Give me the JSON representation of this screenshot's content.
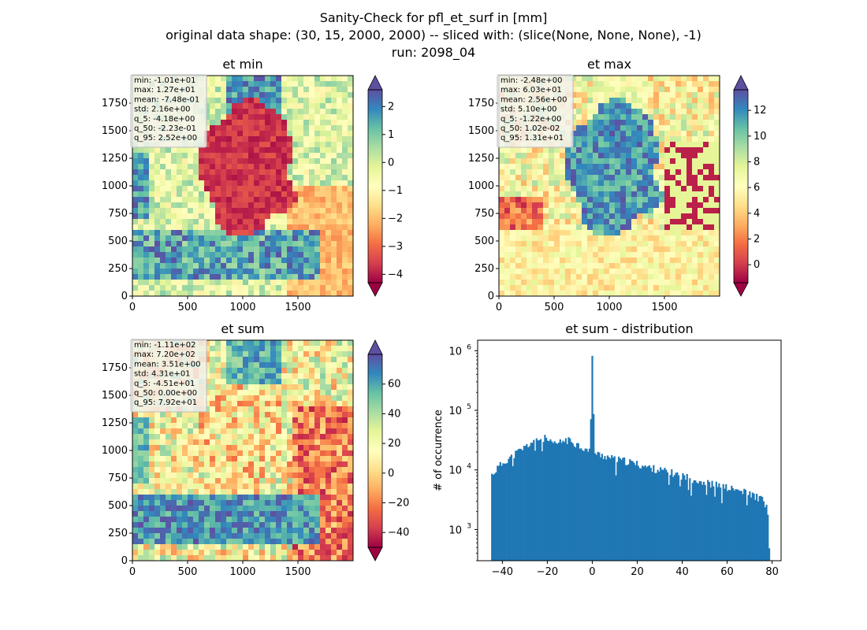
{
  "figure": {
    "title_lines": [
      "Sanity-Check for pfl_et_surf in [mm]",
      "original data shape: (30, 15, 2000, 2000) -- sliced with: (slice(None, None, None), -1)",
      "run: 2098_04"
    ]
  },
  "colors": {
    "hist_bar": "#1f77b4",
    "colormap": [
      "#9e0142",
      "#d53e4f",
      "#f46d43",
      "#fdae61",
      "#fee08b",
      "#ffffbf",
      "#e6f598",
      "#abdda4",
      "#66c2a5",
      "#3288bd",
      "#5e4fa2"
    ]
  },
  "chart_data": [
    {
      "type": "heatmap",
      "title": "et min",
      "xlim": [
        0,
        2000
      ],
      "ylim": [
        0,
        2000
      ],
      "xticks": [
        "0",
        "500",
        "1000",
        "1500"
      ],
      "yticks": [
        "0",
        "250",
        "500",
        "750",
        "1000",
        "1250",
        "1500",
        "1750"
      ],
      "vmin": -4.3,
      "vmax": 2.6,
      "colorbar_ticks": [
        "2",
        "1",
        "0",
        "−1",
        "−2",
        "−3",
        "−4"
      ],
      "colorbar_tick_values": [
        2,
        1,
        0,
        -1,
        -2,
        -3,
        -4
      ],
      "stats": [
        "min: -1.01e+01",
        "max: 1.27e+01",
        "mean: -7.48e-01",
        "std: 2.16e+00",
        "q_5: -4.18e+00",
        "q_50: -2.23e-01",
        "q_95: 2.52e+00"
      ]
    },
    {
      "type": "heatmap",
      "title": "et max",
      "xlim": [
        0,
        2000
      ],
      "ylim": [
        0,
        2000
      ],
      "xticks": [
        "0",
        "500",
        "1000",
        "1500"
      ],
      "yticks": [
        "0",
        "250",
        "500",
        "750",
        "1000",
        "1250",
        "1500",
        "1750"
      ],
      "vmin": -1.4,
      "vmax": 13.6,
      "colorbar_ticks": [
        "12",
        "10",
        "8",
        "6",
        "4",
        "2",
        "0"
      ],
      "colorbar_tick_values": [
        12,
        10,
        8,
        6,
        4,
        2,
        0
      ],
      "stats": [
        "min: -2.48e+00",
        "max: 6.03e+01",
        "mean: 2.56e+00",
        "std: 5.10e+00",
        "q_5: -1.22e+00",
        "q_50: 1.02e-02",
        "q_95: 1.31e+01"
      ]
    },
    {
      "type": "heatmap",
      "title": "et sum",
      "xlim": [
        0,
        2000
      ],
      "ylim": [
        0,
        2000
      ],
      "xticks": [
        "0",
        "500",
        "1000",
        "1500"
      ],
      "yticks": [
        "0",
        "250",
        "500",
        "750",
        "1000",
        "1250",
        "1500",
        "1750"
      ],
      "vmin": -50,
      "vmax": 80,
      "colorbar_ticks": [
        "60",
        "40",
        "20",
        "0",
        "−20",
        "−40"
      ],
      "colorbar_tick_values": [
        60,
        40,
        20,
        0,
        -20,
        -40
      ],
      "stats": [
        "min: -1.11e+02",
        "max: 7.20e+02",
        "mean: 3.51e+00",
        "std: 4.31e+01",
        "q_5: -4.51e+01",
        "q_50: 0.00e+00",
        "q_95: 7.92e+01"
      ]
    },
    {
      "type": "bar",
      "subtype": "histogram",
      "title": "et sum - distribution",
      "xlabel": "",
      "ylabel": "# of occurrence",
      "xlim": [
        -51,
        84
      ],
      "log_y": true,
      "ylim": [
        300,
        1500000
      ],
      "xticks": [
        "−40",
        "−20",
        "0",
        "20",
        "40",
        "60",
        "80"
      ],
      "xtick_values": [
        -40,
        -20,
        0,
        20,
        40,
        60,
        80
      ],
      "yticks": [
        "10",
        "10",
        "10",
        "10"
      ],
      "ytick_exponents": [
        "3",
        "4",
        "5",
        "6"
      ],
      "ytick_values": [
        1000,
        10000,
        100000,
        1000000
      ],
      "bin_range": [
        -45,
        79
      ],
      "bins": 200,
      "shape_points": [
        [
          -45,
          8000
        ],
        [
          -42,
          11000
        ],
        [
          -38,
          15000
        ],
        [
          -34,
          19000
        ],
        [
          -30,
          24000
        ],
        [
          -27,
          29000
        ],
        [
          -24,
          33000
        ],
        [
          -21,
          34000
        ],
        [
          -18,
          27000
        ],
        [
          -15,
          28000
        ],
        [
          -12,
          32000
        ],
        [
          -9,
          30000
        ],
        [
          -6,
          26000
        ],
        [
          -3,
          22000
        ],
        [
          -1,
          20000
        ],
        [
          0,
          820000
        ],
        [
          1,
          19000
        ],
        [
          3,
          18000
        ],
        [
          6,
          17000
        ],
        [
          10,
          15000
        ],
        [
          15,
          14000
        ],
        [
          20,
          12500
        ],
        [
          25,
          11000
        ],
        [
          30,
          10000
        ],
        [
          35,
          9000
        ],
        [
          40,
          8000
        ],
        [
          45,
          7000
        ],
        [
          50,
          6200
        ],
        [
          55,
          5600
        ],
        [
          60,
          5000
        ],
        [
          65,
          4500
        ],
        [
          70,
          4000
        ],
        [
          75,
          3300
        ],
        [
          77,
          2700
        ],
        [
          78,
          2000
        ],
        [
          78.5,
          450
        ]
      ]
    }
  ]
}
